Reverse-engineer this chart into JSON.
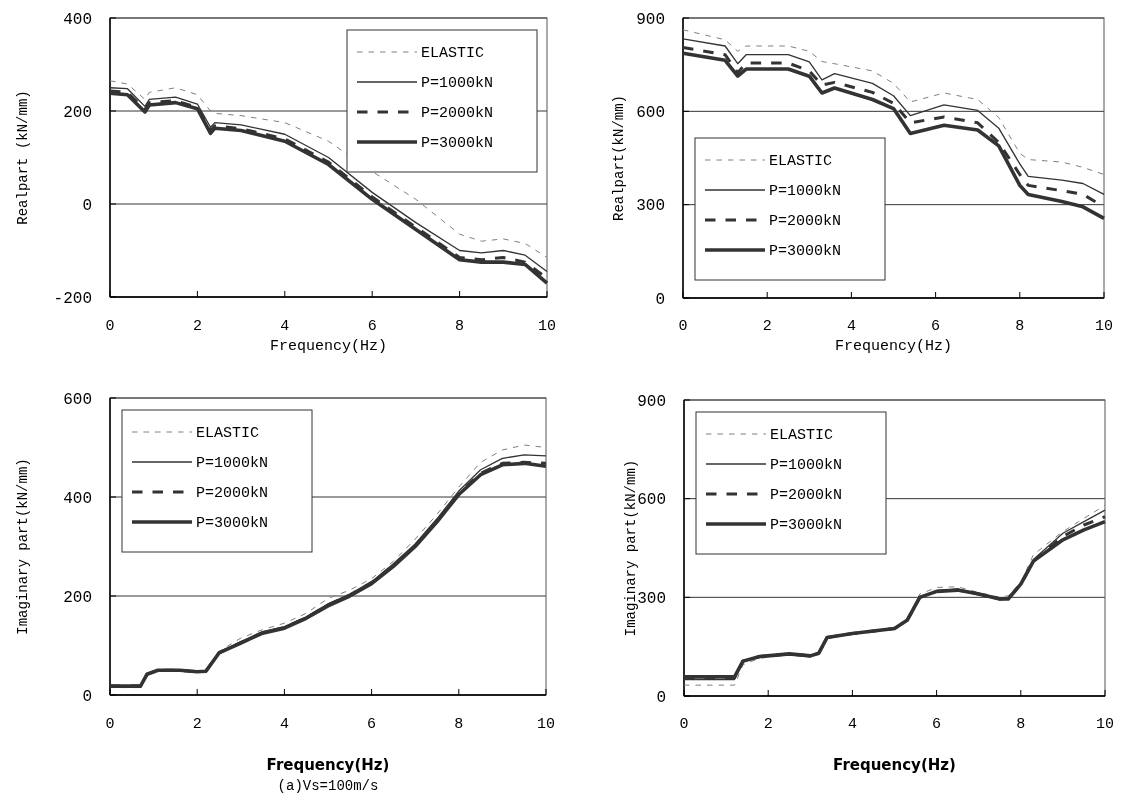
{
  "chart_data": [
    {
      "type": "line",
      "ylabel": "Realpart (kN/mm)",
      "xlabel": "Frequency(Hz)",
      "xlim": [
        0,
        10
      ],
      "xticks": [
        0,
        2,
        4,
        6,
        8,
        10
      ],
      "ylim": [
        -200,
        400
      ],
      "yticks": [
        -200,
        0,
        200,
        400
      ],
      "grid": "y",
      "legend": "top right",
      "marker": "none",
      "x": [
        0,
        0.4,
        0.8,
        0.9,
        1.5,
        2.0,
        2.3,
        2.4,
        3.0,
        4.0,
        5.0,
        6.0,
        7.0,
        8.0,
        8.5,
        9.0,
        9.5,
        10
      ],
      "series": [
        {
          "name": "ELASTIC",
          "color": "#808080",
          "line_style": "dashed",
          "values": [
            265,
            258,
            225,
            240,
            250,
            235,
            200,
            195,
            190,
            175,
            135,
            70,
            10,
            -65,
            -80,
            -75,
            -85,
            -115
          ]
        },
        {
          "name": "P=1000kN",
          "color": "#333333",
          "line_style": "solid",
          "values": [
            250,
            248,
            210,
            225,
            230,
            215,
            165,
            175,
            170,
            150,
            100,
            25,
            -40,
            -100,
            -105,
            -100,
            -110,
            -145
          ]
        },
        {
          "name": "P=2000kN",
          "color": "#333333",
          "line_style": "dashed",
          "values": [
            243,
            240,
            203,
            218,
            222,
            208,
            158,
            168,
            162,
            140,
            90,
            15,
            -50,
            -115,
            -120,
            -115,
            -125,
            -160
          ]
        },
        {
          "name": "P=3000kN",
          "color": "#333333",
          "line_style": "solid",
          "values": [
            238,
            235,
            198,
            213,
            218,
            205,
            152,
            163,
            158,
            135,
            85,
            10,
            -55,
            -120,
            -125,
            -125,
            -130,
            -170
          ]
        }
      ]
    },
    {
      "type": "line",
      "ylabel": "Realpart(kN/mm)",
      "xlabel": "Frequency(Hz)",
      "xlim": [
        0,
        10
      ],
      "xticks": [
        0,
        2,
        4,
        6,
        8,
        10
      ],
      "ylim": [
        0,
        900
      ],
      "yticks": [
        0,
        300,
        600,
        900
      ],
      "grid": "y",
      "legend": "bottom left",
      "marker": "none",
      "x": [
        0,
        1.0,
        1.3,
        1.5,
        2.5,
        3.0,
        3.3,
        3.6,
        4.5,
        5.0,
        5.4,
        6.2,
        7.0,
        7.5,
        8.0,
        8.2,
        9.0,
        9.5,
        10
      ],
      "series": [
        {
          "name": "ELASTIC",
          "color": "#808080",
          "line_style": "dashed",
          "values": [
            862,
            830,
            793,
            810,
            810,
            793,
            760,
            753,
            730,
            690,
            630,
            659,
            638,
            580,
            465,
            445,
            437,
            420,
            397
          ]
        },
        {
          "name": "P=1000kN",
          "color": "#333333",
          "line_style": "solid",
          "values": [
            833,
            810,
            753,
            782,
            782,
            759,
            701,
            721,
            690,
            650,
            586,
            621,
            603,
            546,
            431,
            391,
            379,
            368,
            333
          ]
        },
        {
          "name": "P=2000kN",
          "color": "#333333",
          "line_style": "dashed",
          "values": [
            805,
            782,
            724,
            755,
            755,
            730,
            684,
            693,
            661,
            626,
            563,
            582,
            563,
            500,
            397,
            362,
            345,
            333,
            293
          ]
        },
        {
          "name": "P=3000kN",
          "color": "#333333",
          "line_style": "solid",
          "values": [
            787,
            764,
            713,
            736,
            736,
            713,
            659,
            675,
            638,
            609,
            529,
            555,
            540,
            489,
            362,
            333,
            310,
            293,
            256
          ]
        }
      ]
    },
    {
      "type": "line",
      "ylabel": "Imaginary part(kN/mm)",
      "xlabel": "Frequency(Hz)",
      "xlim": [
        0,
        10
      ],
      "xticks": [
        0,
        2,
        4,
        6,
        8,
        10
      ],
      "ylim": [
        0,
        600
      ],
      "yticks": [
        0,
        200,
        400,
        600
      ],
      "grid": "y",
      "legend": "top left",
      "marker": "none",
      "annotations": [
        "(a)Vs=100m/s"
      ],
      "x": [
        0,
        0.7,
        0.85,
        1.1,
        1.6,
        2.0,
        2.2,
        2.5,
        3.0,
        3.5,
        4.0,
        4.5,
        5.0,
        5.5,
        6.0,
        6.5,
        7.0,
        7.5,
        8.0,
        8.5,
        9.0,
        9.5,
        10
      ],
      "series": [
        {
          "name": "ELASTIC",
          "color": "#808080",
          "line_style": "dashed",
          "values": [
            15,
            15,
            42,
            50,
            50,
            47,
            48,
            88,
            115,
            132,
            145,
            165,
            195,
            212,
            235,
            270,
            315,
            365,
            420,
            470,
            495,
            505,
            500
          ]
        },
        {
          "name": "P=1000kN",
          "color": "#333333",
          "line_style": "solid",
          "values": [
            18,
            18,
            42,
            50,
            50,
            47,
            48,
            86,
            108,
            128,
            138,
            158,
            184,
            204,
            229,
            265,
            305,
            356,
            412,
            455,
            478,
            485,
            483
          ]
        },
        {
          "name": "P=2000kN",
          "color": "#333333",
          "line_style": "dashed",
          "values": [
            18,
            18,
            42,
            50,
            50,
            47,
            48,
            85,
            106,
            126,
            136,
            156,
            182,
            202,
            227,
            262,
            302,
            352,
            407,
            448,
            468,
            470,
            468
          ]
        },
        {
          "name": "P=3000kN",
          "color": "#333333",
          "line_style": "solid",
          "values": [
            18,
            18,
            42,
            50,
            50,
            47,
            48,
            85,
            105,
            125,
            135,
            155,
            180,
            200,
            225,
            260,
            300,
            350,
            405,
            445,
            465,
            468,
            462
          ]
        }
      ]
    },
    {
      "type": "line",
      "ylabel": "Imaginary part(kN/mm)",
      "xlabel": "Frequency(Hz)",
      "xlim": [
        0,
        10
      ],
      "xticks": [
        0,
        2,
        4,
        6,
        8,
        10
      ],
      "ylim": [
        0,
        900
      ],
      "yticks": [
        0,
        300,
        600,
        900
      ],
      "grid": "y",
      "legend": "top left",
      "marker": "none",
      "x": [
        0,
        1.2,
        1.4,
        1.8,
        2.5,
        3.0,
        3.2,
        3.4,
        4.0,
        5.0,
        5.3,
        5.6,
        6.0,
        6.5,
        7.0,
        7.5,
        7.7,
        8.0,
        8.3,
        9.0,
        9.5,
        10
      ],
      "series": [
        {
          "name": "ELASTIC",
          "color": "#808080",
          "line_style": "dashed",
          "values": [
            33,
            33,
            95,
            115,
            125,
            118,
            128,
            178,
            190,
            208,
            235,
            310,
            330,
            332,
            315,
            300,
            305,
            345,
            430,
            500,
            540,
            580
          ]
        },
        {
          "name": "P=1000kN",
          "color": "#333333",
          "line_style": "solid",
          "values": [
            50,
            50,
            104,
            120,
            128,
            122,
            130,
            178,
            190,
            205,
            230,
            300,
            320,
            325,
            312,
            298,
            298,
            340,
            415,
            495,
            530,
            565
          ]
        },
        {
          "name": "P=2000kN",
          "color": "#333333",
          "line_style": "dashed",
          "values": [
            55,
            55,
            106,
            120,
            128,
            122,
            130,
            178,
            190,
            205,
            230,
            300,
            318,
            322,
            310,
            295,
            295,
            340,
            410,
            485,
            520,
            545
          ]
        },
        {
          "name": "P=3000kN",
          "color": "#333333",
          "line_style": "solid",
          "values": [
            58,
            58,
            106,
            120,
            128,
            122,
            130,
            178,
            190,
            205,
            230,
            300,
            318,
            322,
            310,
            295,
            295,
            340,
            410,
            475,
            505,
            530
          ]
        }
      ]
    }
  ]
}
